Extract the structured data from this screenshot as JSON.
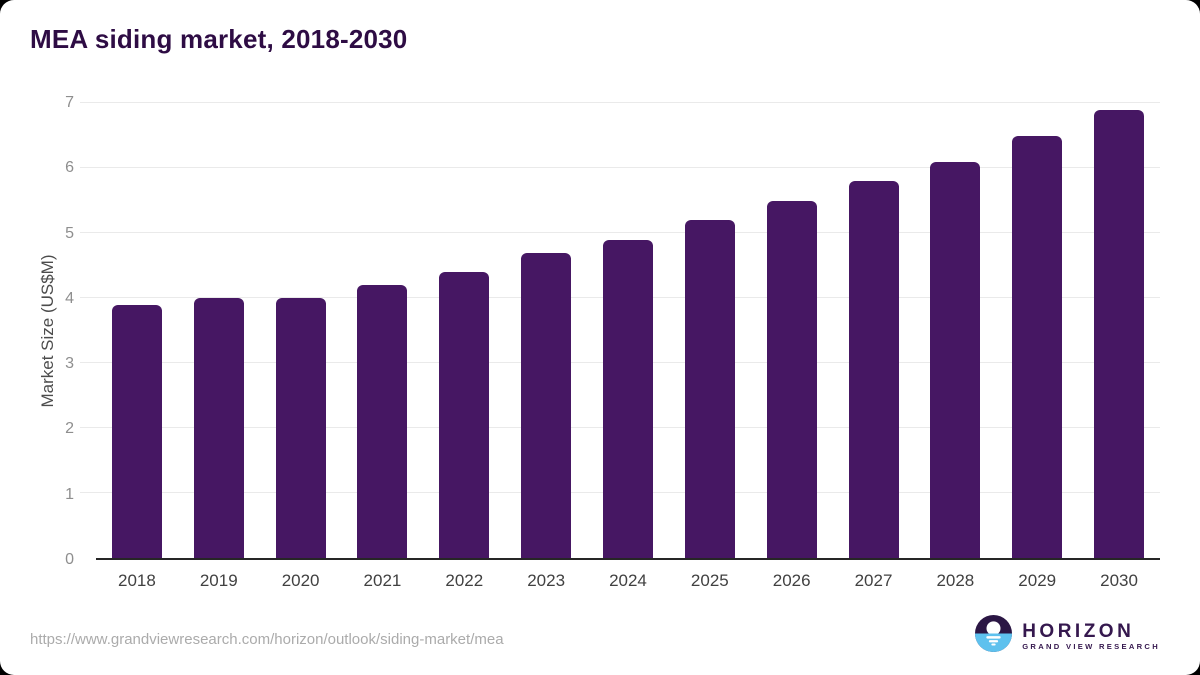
{
  "header": {
    "title": "MEA siding market, 2018-2030"
  },
  "chart_data": {
    "type": "bar",
    "title": "MEA siding market, 2018-2030",
    "categories": [
      "2018",
      "2019",
      "2020",
      "2021",
      "2022",
      "2023",
      "2024",
      "2025",
      "2026",
      "2027",
      "2028",
      "2029",
      "2030"
    ],
    "values": [
      3.9,
      4.0,
      4.0,
      4.2,
      4.4,
      4.7,
      4.9,
      5.2,
      5.5,
      5.8,
      6.1,
      6.5,
      6.9
    ],
    "xlabel": "",
    "ylabel": "Market Size (US$M)",
    "ylim": [
      0,
      7
    ],
    "yticks": [
      0,
      1,
      2,
      3,
      4,
      5,
      6,
      7
    ],
    "grid": true,
    "legend": "none",
    "bar_color": "#461763"
  },
  "footer": {
    "source_url": "https://www.grandviewresearch.com/horizon/outlook/siding-market/mea",
    "logo": {
      "name": "HORIZON",
      "subtext": "GRAND VIEW RESEARCH",
      "icon": "horizon-sun-circle-icon",
      "icon_top_color": "#2b1644",
      "icon_bottom_color": "#5ec1ee"
    }
  },
  "colors": {
    "card_background": "#ffffff",
    "page_background": "#000000",
    "title_text": "#2e0c44",
    "bar": "#461763",
    "gridline": "#eaeaea",
    "axis_line": "#262626",
    "y_tick_text": "#8e8e8e",
    "x_tick_text": "#414141",
    "url_text": "#ababab",
    "logo_text": "#35184e"
  }
}
